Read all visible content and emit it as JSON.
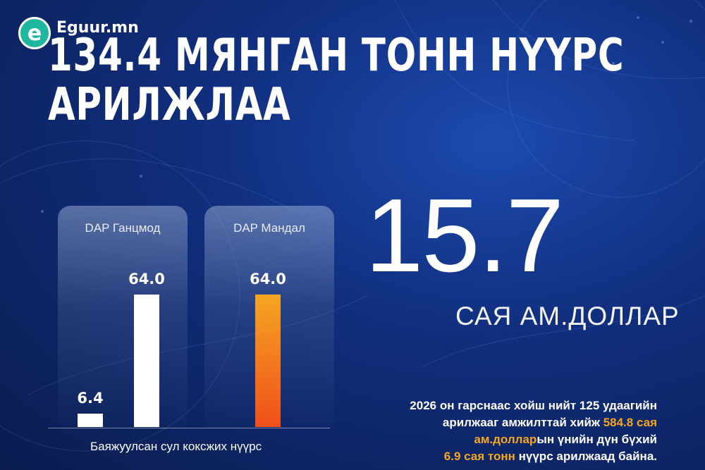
{
  "brand": {
    "logo_letter": "e",
    "name": "Eguur.mn"
  },
  "title_lines": [
    "134.4 МЯНГАН ТОНН НҮҮРС",
    "АРИЛЖЛАА"
  ],
  "colors": {
    "bar_white": "#ffffff",
    "bar_orange_top": "#f5a623",
    "bar_orange_bottom": "#f0501a",
    "highlight": "#f5a623"
  },
  "chart_data": {
    "type": "bar",
    "xlabel": "Баяжуулсан сул коксжих нүүрс",
    "groups": [
      {
        "name": "DAP Ганцмод",
        "bars": [
          {
            "value": 6.4,
            "label": "6.4",
            "color": "white"
          },
          {
            "value": 64.0,
            "label": "64.0",
            "color": "white"
          }
        ]
      },
      {
        "name": "DAP Мандал",
        "bars": [
          {
            "value": 64.0,
            "label": "64.0",
            "color": "orange"
          }
        ]
      }
    ]
  },
  "headline_value": "15.7",
  "headline_unit": "САЯ АМ.ДОЛЛАР",
  "description": {
    "line1": "2026 он гарснаас хойш нийт 125 удаагийн",
    "line2_a": "арилжааг амжилттай хийж ",
    "line2_hl": "584.8 сая",
    "line3_hl": "ам.доллар",
    "line3_b": "ын үнийн дүн бүхий",
    "line4_hl": "6.9 сая тонн",
    "line4_b": " нүүрс арилжаад байна."
  }
}
